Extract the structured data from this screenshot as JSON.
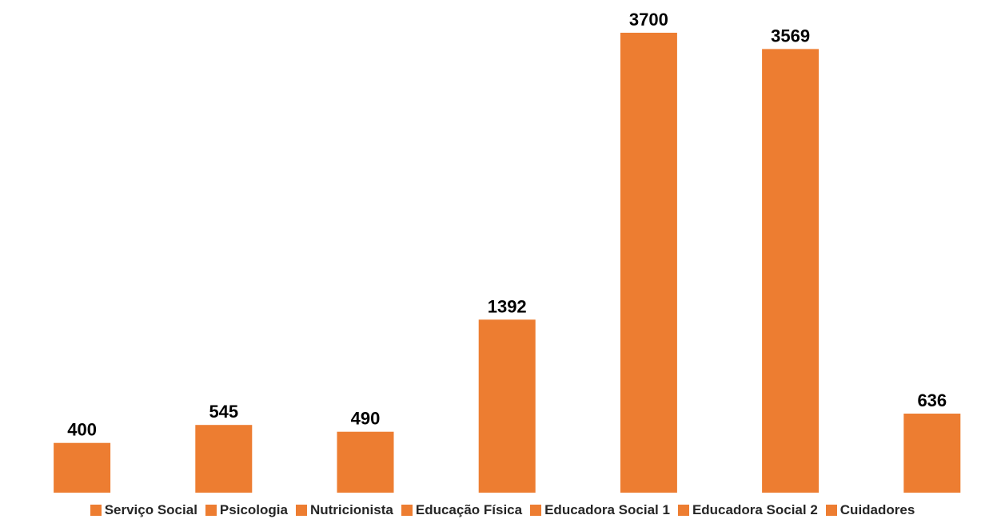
{
  "chart_data": {
    "type": "bar",
    "categories": [
      "Serviço Social",
      "Psicologia",
      "Nutricionista",
      "Educação Física",
      "Educadora Social 1",
      "Educadora Social 2",
      "Cuidadores"
    ],
    "values": [
      400,
      545,
      490,
      1392,
      3700,
      3569,
      636
    ],
    "data_labels": [
      "400",
      "545",
      "490",
      "1392",
      "3700",
      "3569",
      "636"
    ],
    "title": "",
    "xlabel": "",
    "ylabel": "",
    "ylim": [
      0,
      3700
    ],
    "grid": false,
    "legend_position": "bottom",
    "bar_color": "#ED7D31"
  }
}
